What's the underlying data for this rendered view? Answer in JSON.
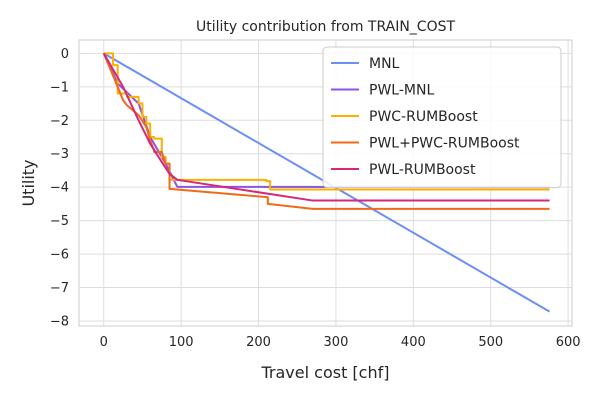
{
  "chart_data": {
    "type": "line",
    "title": "Utility contribution from TRAIN_COST",
    "xlabel": "Travel cost [chf]",
    "ylabel": "Utility",
    "xlim": [
      -32,
      605
    ],
    "ylim": [
      -8.15,
      0.4
    ],
    "xticks": [
      0,
      100,
      200,
      300,
      400,
      500,
      600
    ],
    "yticks": [
      0,
      -1,
      -2,
      -3,
      -4,
      -5,
      -6,
      -7,
      -8
    ],
    "grid": true,
    "legend_position": "top-right",
    "series": [
      {
        "name": "MNL",
        "color": "#6b8ff5",
        "x": [
          0,
          576
        ],
        "y": [
          0,
          -7.72
        ]
      },
      {
        "name": "PWL-MNL",
        "color": "#8a55e0",
        "x": [
          0,
          18,
          45,
          60,
          80,
          95,
          576
        ],
        "y": [
          0,
          -0.9,
          -1.5,
          -2.5,
          -3.3,
          -3.99,
          -4.0
        ]
      },
      {
        "name": "PWC-RUMBoost",
        "color": "#fbb000",
        "x": [
          0,
          12,
          12,
          18,
          18,
          30,
          30,
          45,
          45,
          50,
          50,
          55,
          55,
          60,
          60,
          65,
          65,
          75,
          75,
          80,
          80,
          85,
          85,
          210,
          210,
          215,
          215,
          576
        ],
        "y": [
          0,
          0,
          -0.35,
          -0.35,
          -1.2,
          -1.2,
          -1.3,
          -1.3,
          -1.5,
          -1.5,
          -1.9,
          -1.9,
          -2.1,
          -2.1,
          -2.5,
          -2.5,
          -2.55,
          -2.55,
          -3.1,
          -3.1,
          -3.3,
          -3.3,
          -3.78,
          -3.78,
          -3.82,
          -3.82,
          -4.07,
          -4.07
        ]
      },
      {
        "name": "PWL+PWC-RUMBoost",
        "color": "#f06a1a",
        "x": [
          0,
          18,
          25,
          30,
          45,
          55,
          60,
          65,
          65,
          75,
          80,
          85,
          85,
          212,
          212,
          270,
          576
        ],
        "y": [
          0,
          -1.0,
          -1.4,
          -1.55,
          -1.85,
          -2.2,
          -2.6,
          -2.9,
          -2.95,
          -2.95,
          -3.3,
          -3.3,
          -4.05,
          -4.3,
          -4.5,
          -4.65,
          -4.65
        ]
      },
      {
        "name": "PWL-RUMBoost",
        "color": "#d6287a",
        "x": [
          0,
          25,
          45,
          60,
          75,
          85,
          95,
          270,
          576
        ],
        "y": [
          0,
          -1.0,
          -2.0,
          -2.7,
          -3.25,
          -3.6,
          -3.78,
          -4.4,
          -4.4
        ]
      }
    ]
  }
}
